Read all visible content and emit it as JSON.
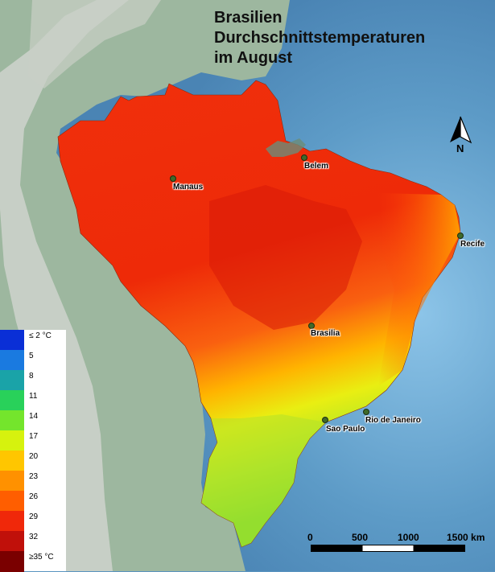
{
  "title": {
    "line1": "Brasilien",
    "line2": "Durchschnittstemperaturen",
    "line3": "im August"
  },
  "cities": [
    {
      "name": "Manaus"
    },
    {
      "name": "Belem"
    },
    {
      "name": "Recife"
    },
    {
      "name": "Brasilia"
    },
    {
      "name": "Rio de Janeiro"
    },
    {
      "name": "Sao Paulo"
    }
  ],
  "legend": {
    "items": [
      {
        "label": "≤ 2 °C",
        "color": "#0a2fd6"
      },
      {
        "label": "5",
        "color": "#1a7ae0"
      },
      {
        "label": "8",
        "color": "#1aa3a8"
      },
      {
        "label": "11",
        "color": "#29d15a"
      },
      {
        "label": "14",
        "color": "#74e52c"
      },
      {
        "label": "17",
        "color": "#d6f20e"
      },
      {
        "label": "20",
        "color": "#ffc600"
      },
      {
        "label": "23",
        "color": "#ff9100"
      },
      {
        "label": "26",
        "color": "#ff5e00"
      },
      {
        "label": "29",
        "color": "#f0280a"
      },
      {
        "label": "32",
        "color": "#c0100a"
      },
      {
        "label": "≥35 °C",
        "color": "#7a0000"
      }
    ]
  },
  "scale_bar": {
    "labels": [
      "0",
      "500",
      "1000",
      "1500 km"
    ]
  },
  "north_arrow": {
    "label": "N",
    "icon": "north-arrow-icon"
  },
  "colors": {
    "ocean": "#5a94c0",
    "land": "#9cb8a0",
    "andes": "#d2d6d0"
  }
}
